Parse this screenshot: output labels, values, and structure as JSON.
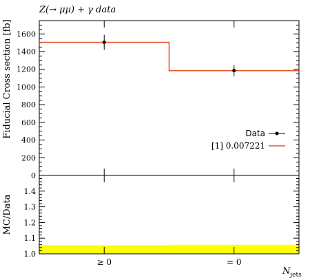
{
  "chart_data": [
    {
      "type": "line",
      "title": "Z(→ μμ) + γ data",
      "ylabel": "Fiducial Cross section [fb]",
      "categories": [
        "≥ 0",
        "= 0"
      ],
      "ylim": [
        0,
        1750
      ],
      "yticks": [
        0,
        200,
        400,
        600,
        800,
        1000,
        1200,
        1400,
        1600
      ],
      "grid": false,
      "legend_position": "right",
      "series": [
        {
          "name": "Data",
          "style": "points-with-error-bars",
          "color": "#000000",
          "values": [
            1505,
            1185
          ],
          "errors": [
            85,
            65
          ]
        },
        {
          "name": "[1] 0.007221",
          "style": "step",
          "color": "#e8532b",
          "values": [
            1505,
            1185
          ]
        }
      ]
    },
    {
      "type": "line",
      "ylabel": "MC/Data",
      "xlabel": "N_jets",
      "xlabel_main": "N",
      "xlabel_sub": "jets",
      "categories": [
        "≥ 0",
        "= 0"
      ],
      "ylim": [
        1.0,
        1.5
      ],
      "yticks": [
        1.0,
        1.1,
        1.2,
        1.3,
        1.4
      ],
      "grid": false,
      "band_color": "#ffff00",
      "series": [
        {
          "name": "[1] 0.007221",
          "style": "ratio-band",
          "values": [
            1.0,
            1.0
          ],
          "band_upper": [
            1.055,
            1.058
          ]
        }
      ]
    }
  ]
}
